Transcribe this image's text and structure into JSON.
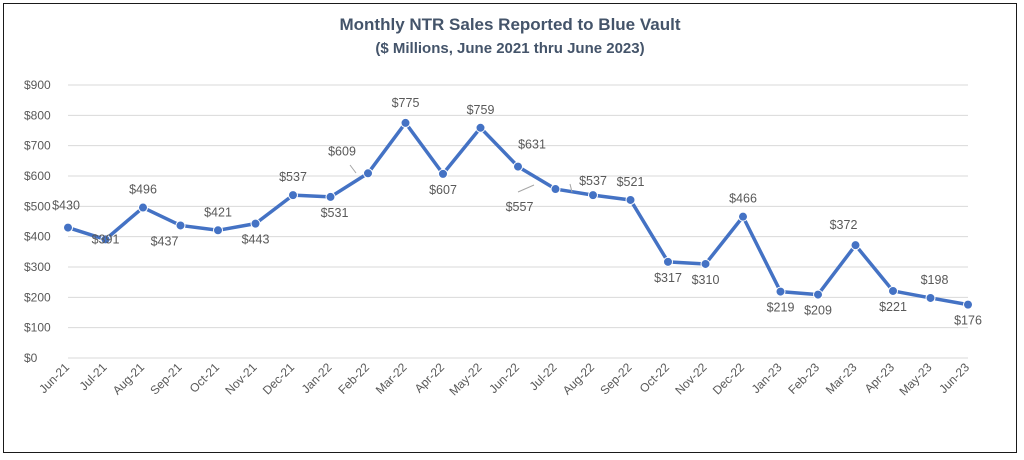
{
  "chart_data": {
    "type": "line",
    "title": "Monthly NTR Sales Reported to Blue Vault",
    "subtitle": "($ Millions, June 2021 thru June 2023)",
    "xlabel": "",
    "ylabel": "",
    "ylim": [
      0,
      900
    ],
    "yticks": [
      0,
      100,
      200,
      300,
      400,
      500,
      600,
      700,
      800,
      900
    ],
    "ytick_labels": [
      "$0",
      "$100",
      "$200",
      "$300",
      "$400",
      "$500",
      "$600",
      "$700",
      "$800",
      "$900"
    ],
    "grid": true,
    "categories": [
      "Jun-21",
      "Jul-21",
      "Aug-21",
      "Sep-21",
      "Oct-21",
      "Nov-21",
      "Dec-21",
      "Jan-22",
      "Feb-22",
      "Mar-22",
      "Apr-22",
      "May-22",
      "Jun-22",
      "Jul-22",
      "Aug-22",
      "Sep-22",
      "Oct-22",
      "Nov-22",
      "Dec-22",
      "Jan-23",
      "Feb-23",
      "Mar-23",
      "Apr-23",
      "May-23",
      "Jun-23"
    ],
    "series": [
      {
        "values": [
          430,
          391,
          496,
          437,
          421,
          443,
          537,
          531,
          609,
          775,
          607,
          759,
          631,
          557,
          537,
          521,
          317,
          310,
          466,
          219,
          209,
          372,
          221,
          198,
          176
        ],
        "data_labels": [
          "$430",
          "$391",
          "$496",
          "$437",
          "$421",
          "$443",
          "$537",
          "$531",
          "$609",
          "$775",
          "$607",
          "$759",
          "$631",
          "$557",
          "$537",
          "$521",
          "$317",
          "$310",
          "$466",
          "$219",
          "$209",
          "$372",
          "$221",
          "$198",
          "$176"
        ],
        "color": "#4472c4"
      }
    ]
  }
}
